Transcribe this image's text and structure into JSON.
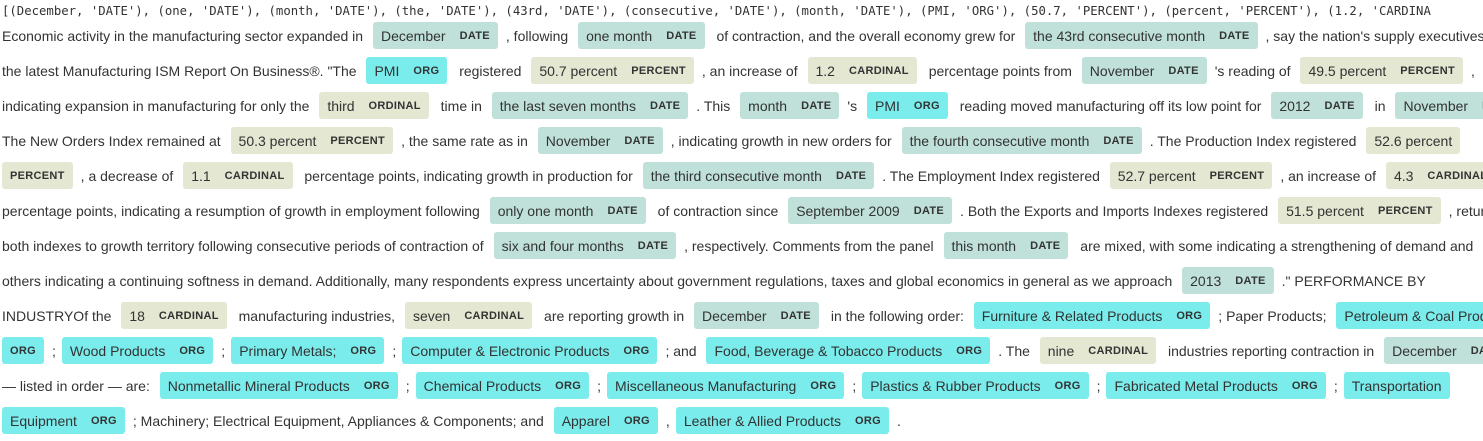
{
  "header": {
    "tuple_text": "[(December, 'DATE'), (one, 'DATE'), (month, 'DATE'), (the, 'DATE'), (43rd, 'DATE'), (consecutive, 'DATE'), (month, 'DATE'), (PMI, 'ORG'), (50.7, 'PERCENT'), (percent, 'PERCENT'), (1.2, 'CARDINA"
  },
  "entity_colors": {
    "DATE": "#bfe1d9",
    "ORG": "#7aecec",
    "PERCENT": "#e4e7d2",
    "CARDINAL": "#e4e7d2",
    "ORDINAL": "#e4e7d2"
  },
  "lines": [
    [
      {
        "t": "Economic activity in the manufacturing sector expanded in "
      },
      {
        "e": "December",
        "l": "DATE"
      },
      {
        "t": ", following "
      },
      {
        "e": "one month",
        "l": "DATE"
      },
      {
        "t": " of contraction, and the overall economy grew for "
      },
      {
        "e": "the 43rd consecutive month",
        "l": "DATE"
      },
      {
        "t": ", say the nation's supply executives in"
      }
    ],
    [
      {
        "t": "the latest Manufacturing ISM Report On Business®. \"The "
      },
      {
        "e": "PMI",
        "l": "ORG"
      },
      {
        "t": " registered "
      },
      {
        "e": "50.7 percent",
        "l": "PERCENT"
      },
      {
        "t": ", an increase of "
      },
      {
        "e": "1.2",
        "l": "CARDINAL"
      },
      {
        "t": " percentage points from "
      },
      {
        "e": "November",
        "l": "DATE"
      },
      {
        "t": "'s reading of "
      },
      {
        "e": "49.5 percent",
        "l": "PERCENT"
      },
      {
        "t": ","
      }
    ],
    [
      {
        "t": "indicating expansion in manufacturing for only the "
      },
      {
        "e": "third",
        "l": "ORDINAL"
      },
      {
        "t": " time in "
      },
      {
        "e": "the last seven months",
        "l": "DATE"
      },
      {
        "t": ". This "
      },
      {
        "e": "month",
        "l": "DATE"
      },
      {
        "t": "'s "
      },
      {
        "e": "PMI",
        "l": "ORG"
      },
      {
        "t": " reading moved manufacturing off its low point for "
      },
      {
        "e": "2012",
        "l": "DATE"
      },
      {
        "t": " in "
      },
      {
        "e": "November",
        "l": "DATE"
      }
    ],
    [
      {
        "t": "The New Orders Index remained at "
      },
      {
        "e": "50.3 percent",
        "l": "PERCENT"
      },
      {
        "t": ", the same rate as in "
      },
      {
        "e": "November",
        "l": "DATE"
      },
      {
        "t": ", indicating growth in new orders for "
      },
      {
        "e": "the fourth consecutive month",
        "l": "DATE"
      },
      {
        "t": ". The Production Index registered "
      },
      {
        "e": "52.6 percent",
        "l": "PERCENT",
        "split": "head"
      }
    ],
    [
      {
        "e": "",
        "l": "PERCENT",
        "split": "tail"
      },
      {
        "t": ", a decrease of "
      },
      {
        "e": "1.1",
        "l": "CARDINAL"
      },
      {
        "t": " percentage points, indicating growth in production for "
      },
      {
        "e": "the third consecutive month",
        "l": "DATE"
      },
      {
        "t": ". The Employment Index registered "
      },
      {
        "e": "52.7 percent",
        "l": "PERCENT"
      },
      {
        "t": ", an increase of "
      },
      {
        "e": "4.3",
        "l": "CARDINAL"
      }
    ],
    [
      {
        "t": "percentage points, indicating a resumption of growth in employment following "
      },
      {
        "e": "only one month",
        "l": "DATE"
      },
      {
        "t": " of contraction since "
      },
      {
        "e": "September 2009",
        "l": "DATE"
      },
      {
        "t": ". Both the Exports and Imports Indexes registered "
      },
      {
        "e": "51.5 percent",
        "l": "PERCENT"
      },
      {
        "t": ", returning"
      }
    ],
    [
      {
        "t": "both indexes to growth territory following consecutive periods of contraction of "
      },
      {
        "e": "six and four months",
        "l": "DATE"
      },
      {
        "t": ", respectively. Comments from the panel "
      },
      {
        "e": "this month",
        "l": "DATE"
      },
      {
        "t": " are mixed, with some indicating a strengthening of demand and"
      }
    ],
    [
      {
        "t": "others indicating a continuing softness in demand. Additionally, many respondents express uncertainty about government regulations, taxes and global economics in general as we approach "
      },
      {
        "e": "2013",
        "l": "DATE"
      },
      {
        "t": ".\" PERFORMANCE BY"
      }
    ],
    [
      {
        "t": "INDUSTRYOf the "
      },
      {
        "e": "18",
        "l": "CARDINAL"
      },
      {
        "t": " manufacturing industries, "
      },
      {
        "e": "seven",
        "l": "CARDINAL"
      },
      {
        "t": " are reporting growth in "
      },
      {
        "e": "December",
        "l": "DATE"
      },
      {
        "t": " in the following order: "
      },
      {
        "e": "Furniture & Related Products",
        "l": "ORG"
      },
      {
        "t": "; Paper Products; "
      },
      {
        "e": "Petroleum & Coal Products",
        "l": "ORG",
        "split": "head"
      }
    ],
    [
      {
        "e": "",
        "l": "ORG",
        "split": "tail"
      },
      {
        "t": ";"
      },
      {
        "e": "Wood Products",
        "l": "ORG"
      },
      {
        "t": ";"
      },
      {
        "e": "Primary Metals;",
        "l": "ORG"
      },
      {
        "t": ";"
      },
      {
        "e": "Computer & Electronic Products",
        "l": "ORG"
      },
      {
        "t": "; and "
      },
      {
        "e": "Food, Beverage & Tobacco Products",
        "l": "ORG"
      },
      {
        "t": ". The "
      },
      {
        "e": "nine",
        "l": "CARDINAL"
      },
      {
        "t": " industries reporting contraction in "
      },
      {
        "e": "December",
        "l": "DATE"
      }
    ],
    [
      {
        "t": "— listed in order — are: "
      },
      {
        "e": "Nonmetallic Mineral Products",
        "l": "ORG"
      },
      {
        "t": ";"
      },
      {
        "e": "Chemical Products",
        "l": "ORG"
      },
      {
        "t": ";"
      },
      {
        "e": "Miscellaneous Manufacturing",
        "l": "ORG"
      },
      {
        "t": ";"
      },
      {
        "e": "Plastics & Rubber Products",
        "l": "ORG"
      },
      {
        "t": ";"
      },
      {
        "e": "Fabricated Metal Products",
        "l": "ORG"
      },
      {
        "t": ";"
      },
      {
        "e": "Transportation",
        "l": "ORG",
        "split": "head"
      }
    ],
    [
      {
        "e": "Equipment",
        "l": "ORG",
        "split": "tail"
      },
      {
        "t": "; Machinery; Electrical Equipment, Appliances & Components; and "
      },
      {
        "e": "Apparel",
        "l": "ORG"
      },
      {
        "t": ","
      },
      {
        "e": "Leather & Allied Products",
        "l": "ORG"
      },
      {
        "t": "."
      }
    ]
  ]
}
